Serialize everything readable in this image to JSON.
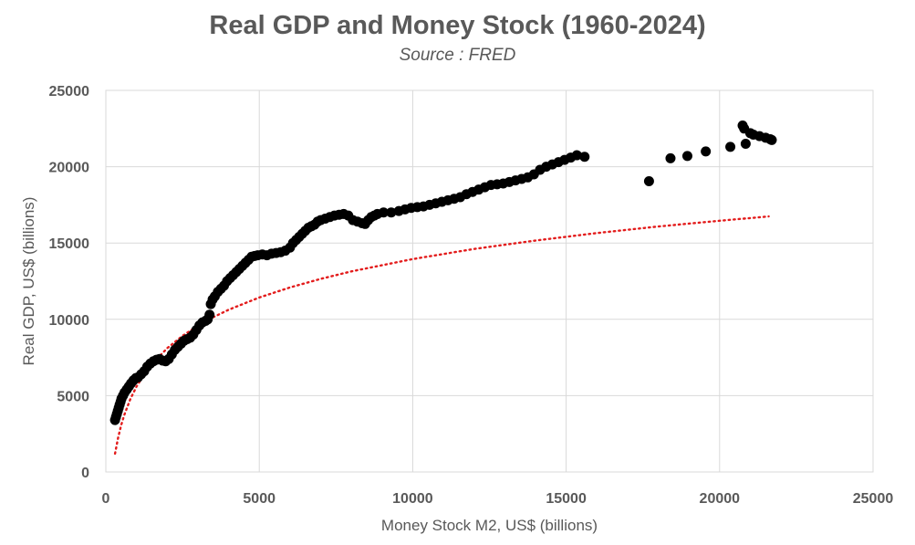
{
  "chart_data": {
    "type": "scatter",
    "title": "Real GDP and Money Stock (1960-2024)",
    "subtitle": "Source : FRED",
    "xlabel": "Money Stock M2, US$ (billions)",
    "ylabel": "Real GDP, US$ (billions)",
    "xlim": [
      0,
      25000
    ],
    "ylim": [
      0,
      25000
    ],
    "x_ticks": [
      0,
      5000,
      10000,
      15000,
      20000,
      25000
    ],
    "y_ticks": [
      0,
      5000,
      10000,
      15000,
      20000,
      25000
    ],
    "x_tick_labels": [
      "0",
      "5000",
      "10000",
      "15000",
      "20000",
      "25000"
    ],
    "y_tick_labels": [
      "0",
      "5000",
      "10000",
      "15000",
      "20000",
      "25000"
    ],
    "grid": true,
    "legend": "none",
    "series": [
      {
        "kind": "points",
        "color": "#000000",
        "points": [
          [
            300,
            3400
          ],
          [
            330,
            3600
          ],
          [
            360,
            3800
          ],
          [
            390,
            4000
          ],
          [
            420,
            4200
          ],
          [
            450,
            4400
          ],
          [
            480,
            4600
          ],
          [
            510,
            4800
          ],
          [
            560,
            5000
          ],
          [
            610,
            5200
          ],
          [
            680,
            5400
          ],
          [
            750,
            5600
          ],
          [
            820,
            5800
          ],
          [
            900,
            6000
          ],
          [
            980,
            6150
          ],
          [
            1050,
            6200
          ],
          [
            1150,
            6400
          ],
          [
            1250,
            6600
          ],
          [
            1350,
            6900
          ],
          [
            1450,
            7100
          ],
          [
            1550,
            7250
          ],
          [
            1650,
            7350
          ],
          [
            1750,
            7400
          ],
          [
            1850,
            7300
          ],
          [
            1950,
            7250
          ],
          [
            2050,
            7400
          ],
          [
            2150,
            7700
          ],
          [
            2250,
            8000
          ],
          [
            2350,
            8200
          ],
          [
            2450,
            8400
          ],
          [
            2550,
            8600
          ],
          [
            2650,
            8700
          ],
          [
            2750,
            8800
          ],
          [
            2850,
            9000
          ],
          [
            2950,
            9300
          ],
          [
            3050,
            9600
          ],
          [
            3150,
            9800
          ],
          [
            3250,
            9900
          ],
          [
            3320,
            10000
          ],
          [
            3380,
            10300
          ],
          [
            3420,
            11000
          ],
          [
            3480,
            11300
          ],
          [
            3550,
            11500
          ],
          [
            3650,
            11800
          ],
          [
            3750,
            12000
          ],
          [
            3850,
            12200
          ],
          [
            3950,
            12500
          ],
          [
            4050,
            12700
          ],
          [
            4150,
            12900
          ],
          [
            4250,
            13100
          ],
          [
            4350,
            13300
          ],
          [
            4450,
            13500
          ],
          [
            4550,
            13700
          ],
          [
            4650,
            13900
          ],
          [
            4750,
            14100
          ],
          [
            4850,
            14150
          ],
          [
            4950,
            14200
          ],
          [
            5100,
            14250
          ],
          [
            5250,
            14200
          ],
          [
            5400,
            14300
          ],
          [
            5550,
            14350
          ],
          [
            5700,
            14400
          ],
          [
            5850,
            14500
          ],
          [
            6000,
            14700
          ],
          [
            6100,
            15000
          ],
          [
            6200,
            15200
          ],
          [
            6300,
            15400
          ],
          [
            6400,
            15600
          ],
          [
            6500,
            15800
          ],
          [
            6600,
            16000
          ],
          [
            6700,
            16100
          ],
          [
            6800,
            16200
          ],
          [
            6900,
            16400
          ],
          [
            7000,
            16500
          ],
          [
            7150,
            16600
          ],
          [
            7300,
            16700
          ],
          [
            7450,
            16800
          ],
          [
            7600,
            16850
          ],
          [
            7750,
            16900
          ],
          [
            7900,
            16800
          ],
          [
            8050,
            16500
          ],
          [
            8200,
            16400
          ],
          [
            8350,
            16300
          ],
          [
            8450,
            16250
          ],
          [
            8550,
            16500
          ],
          [
            8650,
            16700
          ],
          [
            8750,
            16800
          ],
          [
            8850,
            16900
          ],
          [
            9050,
            17000
          ],
          [
            9300,
            17000
          ],
          [
            9550,
            17100
          ],
          [
            9750,
            17200
          ],
          [
            9950,
            17300
          ],
          [
            10150,
            17350
          ],
          [
            10350,
            17400
          ],
          [
            10550,
            17500
          ],
          [
            10750,
            17600
          ],
          [
            10950,
            17700
          ],
          [
            11150,
            17800
          ],
          [
            11350,
            17900
          ],
          [
            11550,
            18000
          ],
          [
            11750,
            18200
          ],
          [
            11950,
            18350
          ],
          [
            12150,
            18500
          ],
          [
            12350,
            18650
          ],
          [
            12550,
            18800
          ],
          [
            12750,
            18850
          ],
          [
            12950,
            18900
          ],
          [
            13150,
            19000
          ],
          [
            13350,
            19100
          ],
          [
            13550,
            19200
          ],
          [
            13750,
            19300
          ],
          [
            13950,
            19500
          ],
          [
            14150,
            19800
          ],
          [
            14350,
            20000
          ],
          [
            14550,
            20150
          ],
          [
            14750,
            20300
          ],
          [
            14950,
            20450
          ],
          [
            15150,
            20600
          ],
          [
            15350,
            20750
          ],
          [
            15600,
            20650
          ],
          [
            17700,
            19050
          ],
          [
            18400,
            20550
          ],
          [
            18950,
            20700
          ],
          [
            19550,
            21000
          ],
          [
            20350,
            21300
          ],
          [
            20750,
            22700
          ],
          [
            20800,
            22500
          ],
          [
            20850,
            21500
          ],
          [
            21000,
            22200
          ],
          [
            21100,
            22100
          ],
          [
            21300,
            22000
          ],
          [
            21500,
            21900
          ],
          [
            21650,
            21800
          ],
          [
            21700,
            21750
          ]
        ]
      },
      {
        "kind": "trendline-logarithmic",
        "color": "#e31c1c",
        "style": "dotted",
        "points": [
          [
            300,
            1200
          ],
          [
            400,
            2250
          ],
          [
            500,
            3060
          ],
          [
            600,
            3730
          ],
          [
            800,
            4780
          ],
          [
            1000,
            5590
          ],
          [
            1250,
            6400
          ],
          [
            1500,
            7060
          ],
          [
            2000,
            8110
          ],
          [
            2500,
            8920
          ],
          [
            3000,
            9580
          ],
          [
            3500,
            10140
          ],
          [
            4000,
            10630
          ],
          [
            5000,
            11430
          ],
          [
            6000,
            12090
          ],
          [
            7000,
            12650
          ],
          [
            8000,
            13140
          ],
          [
            10000,
            13950
          ],
          [
            12000,
            14610
          ],
          [
            14000,
            15160
          ],
          [
            16000,
            15650
          ],
          [
            18000,
            16080
          ],
          [
            20000,
            16460
          ],
          [
            21600,
            16740
          ]
        ]
      }
    ]
  }
}
